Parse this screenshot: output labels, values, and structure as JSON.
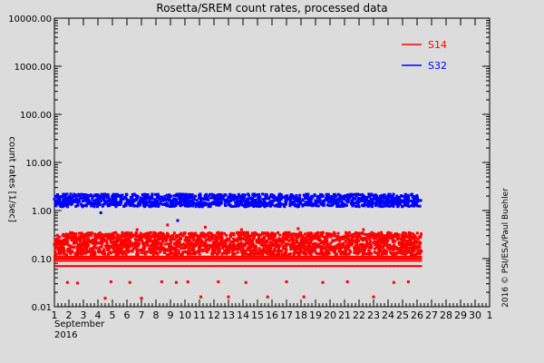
{
  "figure": {
    "credit": "2016 © PSI/ESA/Paul Buehler",
    "x_sublabel_month": "September",
    "x_sublabel_year": "2016"
  },
  "chart_data": {
    "type": "scatter",
    "title": "Rosetta/SREM count rates, processed data",
    "xlabel": "",
    "ylabel": "count rates [1/sec]",
    "xlim": [
      1,
      31
    ],
    "ylim": [
      0.01,
      10000
    ],
    "yscale": "log",
    "grid": false,
    "legend_position": "top-right",
    "x_ticks": [
      "1",
      "2",
      "3",
      "4",
      "5",
      "6",
      "7",
      "8",
      "9",
      "10",
      "11",
      "12",
      "13",
      "14",
      "15",
      "16",
      "17",
      "18",
      "19",
      "20",
      "21",
      "22",
      "23",
      "24",
      "25",
      "26",
      "27",
      "28",
      "29",
      "30",
      "1"
    ],
    "y_ticks": [
      "10000.00",
      "1000.00",
      "100.00",
      "10.00",
      "1.00",
      "0.10",
      "0.01"
    ],
    "series": [
      {
        "name": "S32",
        "color": "#0000ff",
        "x_range": [
          1,
          26.3
        ],
        "typical_band": [
          1.2,
          2.2
        ],
        "outliers": [
          {
            "x": 4.2,
            "y": 0.9
          },
          {
            "x": 9.5,
            "y": 0.62
          }
        ]
      },
      {
        "name": "S14",
        "color": "#ff0000",
        "x_range": [
          1,
          26.3
        ],
        "typical_band": [
          0.12,
          0.35
        ],
        "discrete_levels": [
          0.07,
          0.09,
          0.1,
          0.11
        ],
        "outliers": [
          {
            "x": 1.9,
            "y": 0.032
          },
          {
            "x": 2.6,
            "y": 0.031
          },
          {
            "x": 4.5,
            "y": 0.015
          },
          {
            "x": 4.9,
            "y": 0.033
          },
          {
            "x": 6.2,
            "y": 0.032
          },
          {
            "x": 7.0,
            "y": 0.015
          },
          {
            "x": 8.4,
            "y": 0.033
          },
          {
            "x": 9.4,
            "y": 0.032
          },
          {
            "x": 10.2,
            "y": 0.033
          },
          {
            "x": 11.1,
            "y": 0.016
          },
          {
            "x": 12.3,
            "y": 0.033
          },
          {
            "x": 13.0,
            "y": 0.016
          },
          {
            "x": 14.2,
            "y": 0.032
          },
          {
            "x": 15.7,
            "y": 0.016
          },
          {
            "x": 17.0,
            "y": 0.033
          },
          {
            "x": 18.2,
            "y": 0.016
          },
          {
            "x": 19.5,
            "y": 0.032
          },
          {
            "x": 21.2,
            "y": 0.033
          },
          {
            "x": 23.0,
            "y": 0.016
          },
          {
            "x": 24.4,
            "y": 0.032
          },
          {
            "x": 25.4,
            "y": 0.033
          },
          {
            "x": 6.7,
            "y": 0.4
          },
          {
            "x": 8.8,
            "y": 0.5
          },
          {
            "x": 11.4,
            "y": 0.45
          },
          {
            "x": 13.9,
            "y": 0.4
          },
          {
            "x": 17.8,
            "y": 0.42
          },
          {
            "x": 22.3,
            "y": 0.4
          }
        ]
      }
    ]
  }
}
